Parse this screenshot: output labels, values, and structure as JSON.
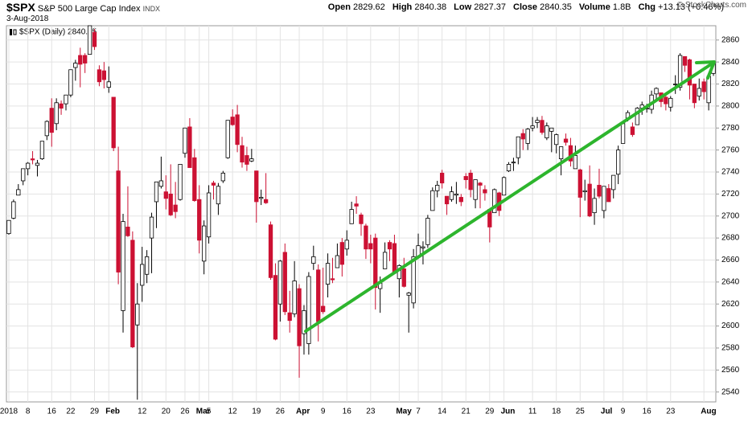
{
  "header": {
    "symbol": "$SPX",
    "name": "S&P 500 Large Cap Index",
    "exchange": "INDX",
    "date": "3-Aug-2018",
    "credit": "© StockCharts.com",
    "quote": [
      {
        "label": "Open",
        "value": 2829.62
      },
      {
        "label": "High",
        "value": 2840.38
      },
      {
        "label": "Low",
        "value": 2827.37
      },
      {
        "label": "Close",
        "value": 2840.35
      },
      {
        "label": "Volume",
        "value": "1.8B"
      },
      {
        "label": "Chg",
        "value": "+13.13 (+0.46%)"
      }
    ]
  },
  "chart_data": {
    "type": "candlestick",
    "legend": "$SPX (Daily) 2840.35",
    "up_color": "#000000",
    "down_color": "#cc1133",
    "grid": true,
    "ylim": [
      2531,
      2873
    ],
    "yticks": [
      2540,
      2560,
      2580,
      2600,
      2620,
      2640,
      2660,
      2680,
      2700,
      2720,
      2740,
      2760,
      2780,
      2800,
      2820,
      2840,
      2860
    ],
    "categories": [
      "2018",
      null,
      null,
      null,
      "8",
      null,
      null,
      null,
      null,
      "16",
      null,
      null,
      null,
      "22",
      null,
      null,
      null,
      null,
      "29",
      null,
      null,
      "Feb",
      null,
      null,
      null,
      null,
      null,
      null,
      "12",
      null,
      null,
      null,
      null,
      "20",
      null,
      null,
      null,
      "26",
      null,
      null,
      "Mar",
      null,
      "5",
      null,
      null,
      null,
      null,
      "12",
      null,
      null,
      null,
      null,
      "19",
      null,
      null,
      null,
      null,
      "26",
      null,
      null,
      null,
      "Apr",
      null,
      null,
      null,
      null,
      "9",
      null,
      null,
      null,
      null,
      "16",
      null,
      null,
      null,
      null,
      "23",
      null,
      null,
      null,
      null,
      null,
      "May",
      null,
      null,
      null,
      "7",
      null,
      null,
      null,
      null,
      "14",
      null,
      null,
      null,
      null,
      "21",
      null,
      null,
      null,
      null,
      "29",
      null,
      null,
      "Jun",
      null,
      null,
      null,
      null,
      null,
      "11",
      null,
      null,
      null,
      null,
      "18",
      null,
      null,
      null,
      null,
      "25",
      null,
      null,
      null,
      null,
      "Jul",
      null,
      null,
      null,
      "9",
      null,
      null,
      null,
      null,
      "16",
      null,
      null,
      null,
      null,
      "23",
      null,
      null,
      null,
      null,
      null,
      null,
      "Aug",
      null,
      null
    ],
    "open": [
      2684,
      2698,
      2719,
      2732,
      2743,
      2752,
      2746,
      2752,
      2773,
      2798,
      2784,
      2802,
      2802,
      2810,
      2835,
      2846,
      2846,
      2847,
      2867,
      2833,
      2832,
      2817,
      2808,
      2741,
      2614,
      2690,
      2678,
      2601,
      2637,
      2647,
      2680,
      2713,
      2727,
      2722,
      2720,
      2710,
      2715,
      2757,
      2781,
      2753,
      2715,
      2659,
      2681,
      2730,
      2711,
      2732,
      2753,
      2790,
      2792,
      2764,
      2755,
      2750,
      2741,
      2716,
      2715,
      2692,
      2646,
      2620,
      2667,
      2612,
      2611,
      2634,
      2593,
      2584,
      2657,
      2651,
      2618,
      2638,
      2643,
      2653,
      2676,
      2670,
      2693,
      2711,
      2701,
      2691,
      2675,
      2680,
      2634,
      2652,
      2676,
      2675,
      2643,
      2652,
      2628,
      2621,
      2663,
      2671,
      2674,
      2705,
      2723,
      2739,
      2718,
      2715,
      2719,
      2717,
      2736,
      2739,
      2715,
      2730,
      2724,
      2706,
      2703,
      2721,
      2719,
      2741,
      2749,
      2753,
      2775,
      2766,
      2780,
      2785,
      2787,
      2771,
      2777,
      2765,
      2752,
      2770,
      2764,
      2743,
      2742,
      2722,
      2729,
      2703,
      2728,
      2705,
      2725,
      2724,
      2738,
      2766,
      2789,
      2781,
      2783,
      2798,
      2798,
      2797,
      2811,
      2812,
      2808,
      2799,
      2820,
      2817,
      2845,
      2842,
      2820,
      2809,
      2822,
      2803,
      2829.62
    ],
    "high": [
      2696,
      2715,
      2729,
      2743,
      2749,
      2759,
      2751,
      2768,
      2787,
      2807,
      2807,
      2805,
      2810,
      2833,
      2842,
      2853,
      2848,
      2873,
      2870,
      2837,
      2840,
      2836,
      2808,
      2763,
      2702,
      2727,
      2686,
      2639,
      2672,
      2669,
      2703,
      2731,
      2754,
      2737,
      2747,
      2731,
      2747,
      2780,
      2789,
      2761,
      2728,
      2696,
      2728,
      2732,
      2730,
      2741,
      2787,
      2797,
      2801,
      2772,
      2763,
      2761,
      2741,
      2724,
      2739,
      2695,
      2657,
      2660,
      2675,
      2632,
      2659,
      2638,
      2619,
      2649,
      2673,
      2656,
      2653,
      2666,
      2662,
      2675,
      2680,
      2687,
      2713,
      2718,
      2703,
      2693,
      2683,
      2684,
      2645,
      2676,
      2678,
      2683,
      2656,
      2662,
      2631,
      2670,
      2684,
      2677,
      2701,
      2726,
      2732,
      2742,
      2718,
      2727,
      2731,
      2720,
      2739,
      2742,
      2733,
      2731,
      2728,
      2706,
      2725,
      2722,
      2736,
      2749,
      2753,
      2772,
      2779,
      2780,
      2790,
      2790,
      2791,
      2785,
      2780,
      2775,
      2763,
      2775,
      2771,
      2764,
      2743,
      2733,
      2746,
      2725,
      2743,
      2727,
      2729,
      2737,
      2764,
      2784,
      2796,
      2785,
      2799,
      2804,
      2802,
      2814,
      2817,
      2812,
      2812,
      2809,
      2828,
      2848,
      2845,
      2843,
      2820,
      2825,
      2825,
      2829,
      2840.38
    ],
    "low": [
      2683,
      2697,
      2719,
      2728,
      2737,
      2747,
      2736,
      2751,
      2769,
      2763,
      2778,
      2792,
      2796,
      2808,
      2823,
      2817,
      2830,
      2847,
      2851,
      2818,
      2816,
      2812,
      2759,
      2638,
      2594,
      2681,
      2580,
      2533,
      2622,
      2639,
      2648,
      2689,
      2725,
      2706,
      2700,
      2698,
      2714,
      2753,
      2744,
      2713,
      2666,
      2647,
      2675,
      2715,
      2701,
      2730,
      2752,
      2782,
      2758,
      2744,
      2741,
      2749,
      2694,
      2710,
      2711,
      2642,
      2587,
      2604,
      2610,
      2594,
      2608,
      2553,
      2574,
      2574,
      2651,
      2586,
      2611,
      2626,
      2639,
      2653,
      2645,
      2664,
      2693,
      2702,
      2682,
      2661,
      2657,
      2615,
      2612,
      2652,
      2659,
      2648,
      2626,
      2635,
      2594,
      2616,
      2661,
      2656,
      2671,
      2705,
      2717,
      2725,
      2701,
      2713,
      2711,
      2709,
      2725,
      2717,
      2707,
      2707,
      2714,
      2676,
      2703,
      2700,
      2719,
      2740,
      2741,
      2747,
      2760,
      2760,
      2777,
      2780,
      2774,
      2769,
      2758,
      2757,
      2737,
      2764,
      2745,
      2743,
      2699,
      2714,
      2699,
      2692,
      2716,
      2698,
      2713,
      2716,
      2729,
      2766,
      2786,
      2772,
      2783,
      2792,
      2794,
      2793,
      2805,
      2799,
      2796,
      2795,
      2811,
      2814,
      2831,
      2806,
      2798,
      2805,
      2806,
      2796,
      2827.37
    ],
    "close": [
      2696,
      2713,
      2724,
      2743,
      2748,
      2751,
      2748,
      2768,
      2786,
      2776,
      2803,
      2798,
      2810,
      2833,
      2839,
      2838,
      2839,
      2873,
      2854,
      2822,
      2824,
      2822,
      2762,
      2649,
      2695,
      2682,
      2581,
      2620,
      2656,
      2663,
      2699,
      2731,
      2732,
      2716,
      2701,
      2704,
      2747,
      2780,
      2744,
      2714,
      2678,
      2691,
      2721,
      2728,
      2727,
      2739,
      2787,
      2783,
      2765,
      2749,
      2747,
      2752,
      2713,
      2717,
      2712,
      2644,
      2588,
      2659,
      2613,
      2605,
      2641,
      2582,
      2614,
      2645,
      2663,
      2604,
      2613,
      2657,
      2642,
      2664,
      2656,
      2678,
      2706,
      2709,
      2693,
      2670,
      2670,
      2635,
      2639,
      2667,
      2670,
      2648,
      2655,
      2636,
      2630,
      2663,
      2673,
      2672,
      2698,
      2723,
      2728,
      2730,
      2711,
      2722,
      2720,
      2713,
      2733,
      2724,
      2733,
      2728,
      2721,
      2690,
      2724,
      2705,
      2735,
      2747,
      2749,
      2772,
      2770,
      2779,
      2782,
      2787,
      2776,
      2782,
      2780,
      2774,
      2763,
      2767,
      2750,
      2755,
      2717,
      2723,
      2700,
      2716,
      2718,
      2727,
      2713,
      2737,
      2760,
      2784,
      2794,
      2774,
      2798,
      2801,
      2798,
      2810,
      2816,
      2804,
      2802,
      2807,
      2820,
      2846,
      2837,
      2819,
      2803,
      2816,
      2813,
      2827,
      2840.35
    ]
  }
}
